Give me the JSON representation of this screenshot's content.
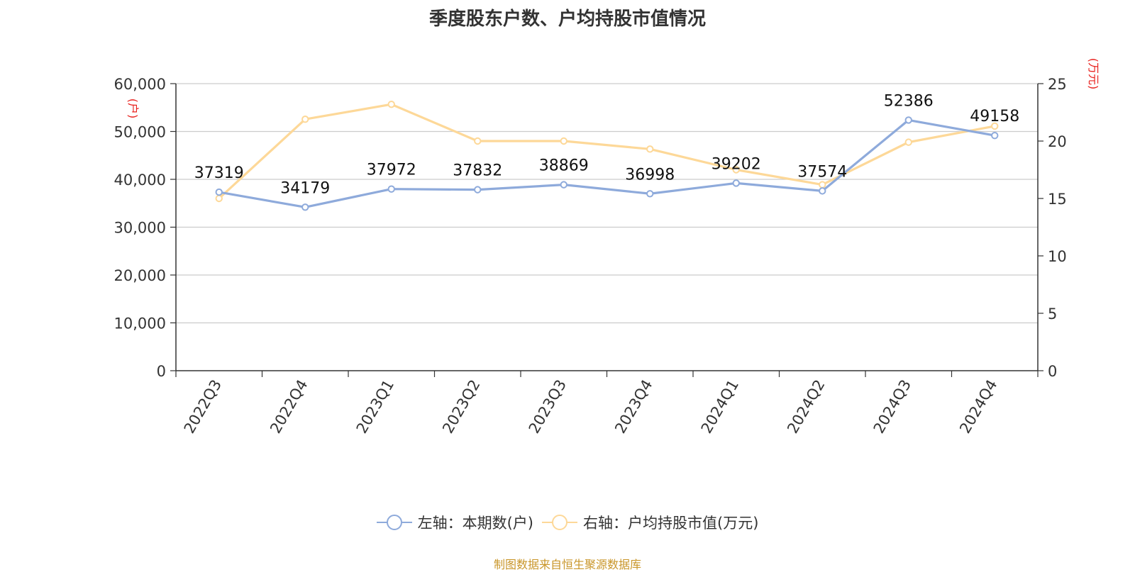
{
  "chart_data": {
    "type": "line",
    "title": "季度股东户数、户均持股市值情况",
    "categories": [
      "2022Q3",
      "2022Q4",
      "2023Q1",
      "2023Q2",
      "2023Q3",
      "2023Q4",
      "2024Q1",
      "2024Q2",
      "2024Q3",
      "2024Q4"
    ],
    "y_left": {
      "unit_label": "(户)",
      "ticks": [
        "0",
        "10,000",
        "20,000",
        "30,000",
        "40,000",
        "50,000",
        "60,000"
      ],
      "ylim": [
        0,
        60000
      ]
    },
    "y_right": {
      "unit_label": "(万元)",
      "ticks": [
        "0",
        "5",
        "10",
        "15",
        "20",
        "25"
      ],
      "ylim": [
        0,
        25
      ]
    },
    "series": [
      {
        "name": "左轴：本期数(户)",
        "axis": "left",
        "color": "#8eaadb",
        "values": [
          37319,
          34179,
          37972,
          37832,
          38869,
          36998,
          39202,
          37574,
          52386,
          49158
        ],
        "labels": [
          "37319",
          "34179",
          "37972",
          "37832",
          "38869",
          "36998",
          "39202",
          "37574",
          "52386",
          "49158"
        ]
      },
      {
        "name": "右轴：户均持股市值(万元)",
        "axis": "right",
        "color": "#fdd898",
        "values": [
          15.0,
          21.9,
          23.2,
          20.0,
          20.0,
          19.3,
          17.5,
          16.2,
          19.9,
          21.3
        ]
      }
    ],
    "grid": true,
    "legend_position": "bottom",
    "source_note": "制图数据来自恒生聚源数据库"
  }
}
